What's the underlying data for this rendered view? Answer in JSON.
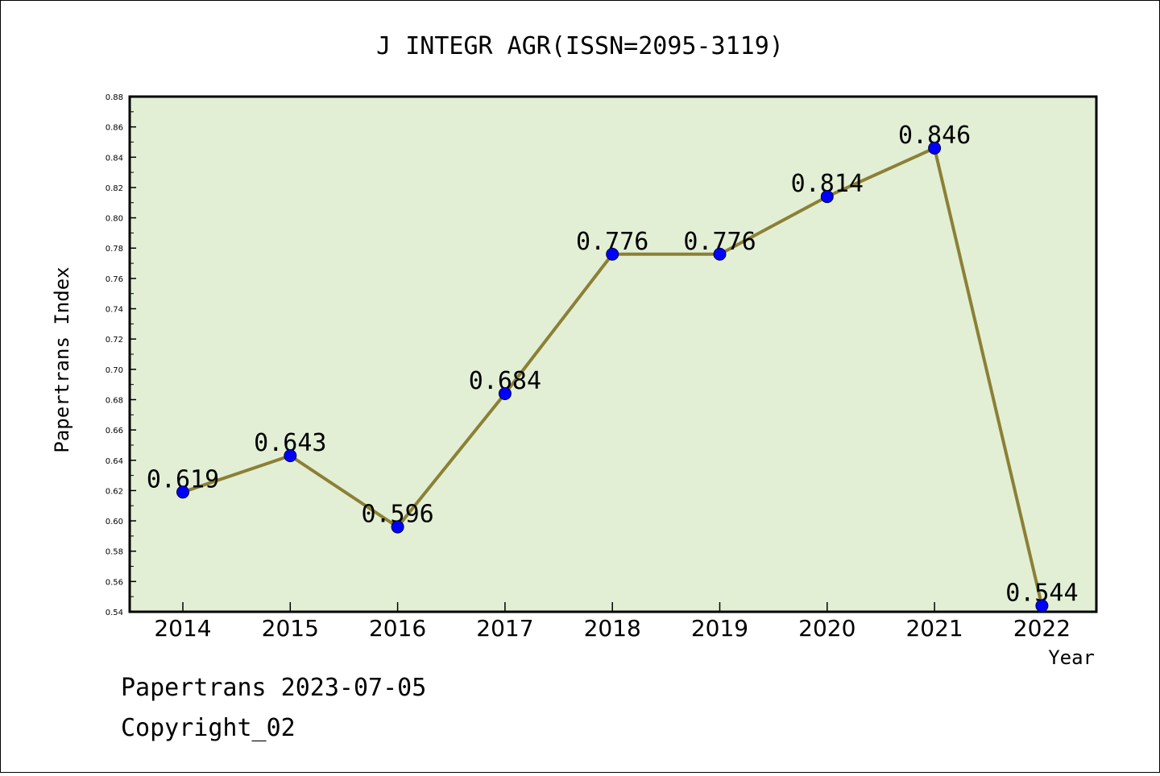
{
  "chart_data": {
    "type": "line",
    "title": "J INTEGR AGR(ISSN=2095-3119)",
    "xlabel": "Year",
    "ylabel": "Papertrans Index",
    "categories": [
      "2014",
      "2015",
      "2016",
      "2017",
      "2018",
      "2019",
      "2020",
      "2021",
      "2022"
    ],
    "series": [
      {
        "values": [
          0.619,
          0.643,
          0.596,
          0.684,
          0.776,
          0.776,
          0.814,
          0.846,
          0.544
        ]
      }
    ],
    "data_labels": [
      "0.619",
      "0.643",
      "0.596",
      "0.684",
      "0.776",
      "0.776",
      "0.814",
      "0.846",
      "0.544"
    ],
    "ylim": [
      0.54,
      0.88
    ],
    "yticks": [
      "0.54",
      "0.56",
      "0.58",
      "0.60",
      "0.62",
      "0.64",
      "0.66",
      "0.68",
      "0.70",
      "0.72",
      "0.74",
      "0.76",
      "0.78",
      "0.80",
      "0.82",
      "0.84",
      "0.86",
      "0.88"
    ],
    "grid": false,
    "colors": {
      "plot_background": "#e2efd5",
      "line": "#8b8035",
      "marker": "#0000ff"
    }
  },
  "footer": {
    "line1": "Papertrans 2023-07-05",
    "line2": "Copyright_02"
  }
}
